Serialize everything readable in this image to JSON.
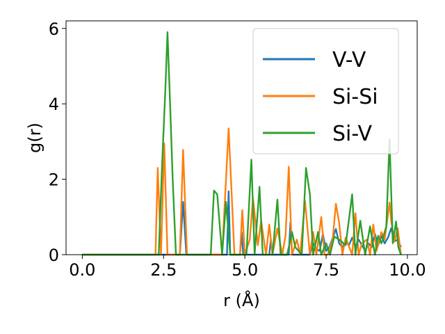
{
  "chart_data": {
    "type": "line",
    "xlabel": "r (Å)",
    "ylabel": "g(r)",
    "xlim": [
      -0.5,
      10.3
    ],
    "ylim": [
      0,
      6.2
    ],
    "xticks": [
      0.0,
      2.5,
      5.0,
      7.5,
      10.0
    ],
    "xtick_labels": [
      "0.0",
      "2.5",
      "5.0",
      "7.5",
      "10.0"
    ],
    "yticks": [
      0,
      2,
      4,
      6
    ],
    "ytick_labels": [
      "0",
      "2",
      "4",
      "6"
    ],
    "grid": false,
    "legend_position": "top-right",
    "series": [
      {
        "name": "V-V",
        "color": "#1f77b4",
        "x": [
          0,
          2.25,
          3.0,
          3.1,
          3.2,
          4.45,
          4.5,
          4.55,
          4.85,
          4.9,
          4.95,
          5.75,
          5.8,
          5.85,
          6.35,
          6.4,
          6.45,
          7.0,
          7.1,
          7.2,
          7.3,
          7.4,
          7.5,
          7.6,
          7.8,
          7.9,
          8.0,
          8.1,
          8.2,
          8.3,
          8.4,
          8.5,
          8.6,
          8.7,
          8.8,
          8.9,
          9.0,
          9.1,
          9.2,
          9.3,
          9.4,
          9.5,
          9.6,
          9.7,
          9.8
        ],
        "y": [
          0,
          0,
          0,
          1.4,
          0,
          0,
          1.68,
          0,
          0,
          0.6,
          0,
          0,
          0.4,
          0,
          0,
          0.85,
          0,
          0,
          0.3,
          0.15,
          0.1,
          0.55,
          0.1,
          0.2,
          0.68,
          0.3,
          0.2,
          0.35,
          0.25,
          0.45,
          0.2,
          0.4,
          0.25,
          0.1,
          0.3,
          0.2,
          0.55,
          0.25,
          0.5,
          0.3,
          0.45,
          0.7,
          0.35,
          0.4,
          0.2
        ]
      },
      {
        "name": "Si-Si",
        "color": "#ff7f0e",
        "x": [
          0,
          2.25,
          2.32,
          2.42,
          2.52,
          2.62,
          2.7,
          2.8,
          3.0,
          3.1,
          3.22,
          4.3,
          4.5,
          4.68,
          4.85,
          4.92,
          5.0,
          5.15,
          5.25,
          5.4,
          5.5,
          5.65,
          5.75,
          5.85,
          6.0,
          6.15,
          6.25,
          6.35,
          6.45,
          6.6,
          6.7,
          6.85,
          7.0,
          7.1,
          7.2,
          7.35,
          7.45,
          7.55,
          7.7,
          7.8,
          7.9,
          8.0,
          8.1,
          8.3,
          8.4,
          8.5,
          8.6,
          8.75,
          8.85,
          8.95,
          9.05,
          9.2,
          9.3,
          9.45,
          9.5,
          9.6,
          9.7,
          9.8
        ],
        "y": [
          0,
          0,
          2.3,
          0,
          2.95,
          0,
          0,
          0,
          0,
          2.78,
          0,
          0,
          3.35,
          0,
          0,
          1.18,
          0,
          0.4,
          1.5,
          0.25,
          0.9,
          0,
          0.8,
          0,
          0.7,
          0,
          0.5,
          2.33,
          0,
          0.4,
          0,
          1.42,
          0,
          0.6,
          0,
          1.0,
          0,
          0,
          0.4,
          1.35,
          0.85,
          0,
          0.45,
          0,
          1.1,
          0,
          0.3,
          0.4,
          0,
          0.8,
          0.1,
          0.6,
          0.4,
          1.38,
          0.9,
          0.35,
          0.7,
          0
        ]
      },
      {
        "name": "Si-V",
        "color": "#2ca02c",
        "x": [
          0,
          2.35,
          2.45,
          2.55,
          2.62,
          2.7,
          2.78,
          2.88,
          3.0,
          3.1,
          3.25,
          3.95,
          4.05,
          4.15,
          4.3,
          4.42,
          4.55,
          4.68,
          5.05,
          5.2,
          5.3,
          5.45,
          5.55,
          5.7,
          5.85,
          6.0,
          6.1,
          6.2,
          6.3,
          6.45,
          6.55,
          6.75,
          6.88,
          7.0,
          7.1,
          7.25,
          7.35,
          7.5,
          7.62,
          7.75,
          7.9,
          8.1,
          8.3,
          8.4,
          8.55,
          8.7,
          8.85,
          9.0,
          9.1,
          9.2,
          9.35,
          9.45,
          9.55,
          9.65,
          9.72,
          9.8
        ],
        "y": [
          0,
          0,
          2.3,
          4.3,
          5.9,
          4.0,
          2.0,
          0,
          0,
          0,
          0,
          0,
          1.7,
          1.6,
          0,
          1.4,
          0,
          0,
          0,
          2.52,
          0,
          1.8,
          0,
          0,
          0,
          1.46,
          0,
          0,
          0,
          0.6,
          0.2,
          0,
          2.3,
          1.6,
          0,
          0.6,
          0,
          0.3,
          0,
          0.48,
          0.4,
          0.25,
          1.6,
          0,
          0.9,
          0,
          0.75,
          0,
          0.5,
          0.3,
          0.75,
          3.05,
          0.3,
          0.88,
          0.2,
          0
        ]
      }
    ]
  }
}
